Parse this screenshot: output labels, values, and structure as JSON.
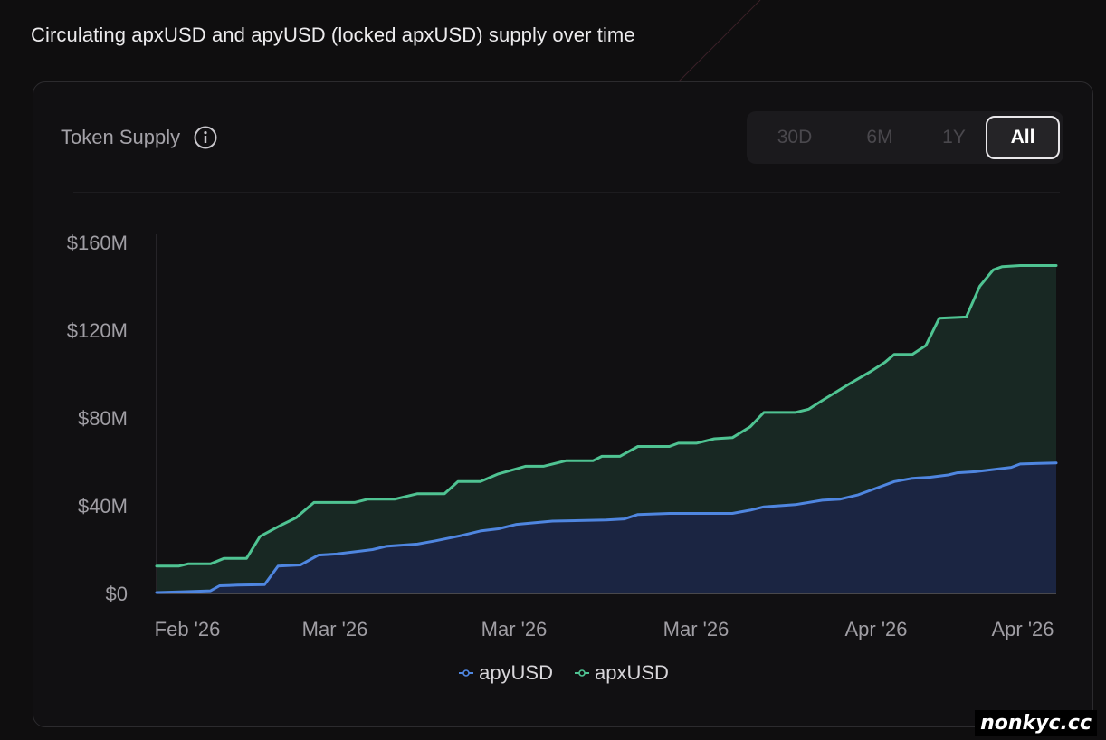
{
  "subtitle": "Circulating apxUSD and apyUSD (locked apxUSD) supply over time",
  "card": {
    "title": "Token Supply",
    "info_icon": "info-icon"
  },
  "range_selector": {
    "options": [
      "30D",
      "6M",
      "1Y",
      "All"
    ],
    "selected": "All"
  },
  "watermark": "nonkyc.cc",
  "chart_data": {
    "type": "area",
    "stacked": false,
    "title": "Token Supply",
    "x_tick_labels": [
      "Feb '26",
      "Mar '26",
      "Mar '26",
      "Mar '26",
      "Apr '26",
      "Apr '26"
    ],
    "x_range": [
      0,
      100
    ],
    "ylim": [
      0,
      160
    ],
    "y_unit": "$M",
    "y_tick_labels": [
      "$0",
      "$40M",
      "$80M",
      "$120M",
      "$160M"
    ],
    "y_ticks": [
      0,
      40,
      80,
      120,
      160
    ],
    "grid": false,
    "legend_position": "bottom-center",
    "series": [
      {
        "name": "apyUSD",
        "color": "#4f86e0",
        "fill": "#1b2544",
        "points": [
          [
            0,
            0.4
          ],
          [
            3,
            0.8
          ],
          [
            6,
            1.2
          ],
          [
            7,
            3.5
          ],
          [
            9,
            3.8
          ],
          [
            12,
            4.0
          ],
          [
            13.5,
            12.5
          ],
          [
            16,
            13.0
          ],
          [
            18,
            17.5
          ],
          [
            20,
            18.0
          ],
          [
            23,
            19.5
          ],
          [
            24,
            20.0
          ],
          [
            25.5,
            21.5
          ],
          [
            29,
            22.5
          ],
          [
            31,
            24.0
          ],
          [
            34,
            26.5
          ],
          [
            36,
            28.5
          ],
          [
            38,
            29.5
          ],
          [
            40,
            31.5
          ],
          [
            44,
            33.0
          ],
          [
            50,
            33.5
          ],
          [
            52,
            34.0
          ],
          [
            53.5,
            36.0
          ],
          [
            57,
            36.5
          ],
          [
            60,
            36.5
          ],
          [
            64,
            36.5
          ],
          [
            66,
            38.0
          ],
          [
            67.5,
            39.5
          ],
          [
            71,
            40.5
          ],
          [
            74,
            42.5
          ],
          [
            76,
            43.0
          ],
          [
            78,
            45.0
          ],
          [
            80,
            48.0
          ],
          [
            82,
            51.0
          ],
          [
            84,
            52.5
          ],
          [
            86,
            53.0
          ],
          [
            88,
            54.0
          ],
          [
            89,
            55.0
          ],
          [
            91,
            55.5
          ],
          [
            93,
            56.5
          ],
          [
            95,
            57.5
          ],
          [
            96,
            59.0
          ],
          [
            100,
            59.5
          ]
        ]
      },
      {
        "name": "apxUSD",
        "color": "#4fc392",
        "fill": "#192a25",
        "points": [
          [
            0,
            12.5
          ],
          [
            2.5,
            12.5
          ],
          [
            3.5,
            13.5
          ],
          [
            6,
            13.5
          ],
          [
            7.5,
            16.0
          ],
          [
            10,
            16.0
          ],
          [
            11.5,
            26.0
          ],
          [
            14,
            31.5
          ],
          [
            15.5,
            34.5
          ],
          [
            17.5,
            41.5
          ],
          [
            22,
            41.5
          ],
          [
            23.5,
            43.0
          ],
          [
            26.5,
            43.0
          ],
          [
            29,
            45.5
          ],
          [
            32,
            45.5
          ],
          [
            33.5,
            51.0
          ],
          [
            36,
            51.0
          ],
          [
            38,
            54.5
          ],
          [
            41,
            58.0
          ],
          [
            43,
            58.0
          ],
          [
            45.5,
            60.5
          ],
          [
            48.5,
            60.5
          ],
          [
            49.5,
            62.5
          ],
          [
            51.5,
            62.5
          ],
          [
            53.5,
            67.0
          ],
          [
            57,
            67.0
          ],
          [
            58,
            68.5
          ],
          [
            60,
            68.5
          ],
          [
            62,
            70.5
          ],
          [
            64,
            71.0
          ],
          [
            66,
            76.0
          ],
          [
            67.5,
            82.5
          ],
          [
            71,
            82.5
          ],
          [
            72.5,
            84.0
          ],
          [
            74,
            88.0
          ],
          [
            77,
            95.5
          ],
          [
            79.5,
            101.5
          ],
          [
            81,
            105.5
          ],
          [
            82,
            109.0
          ],
          [
            84,
            109.0
          ],
          [
            85.5,
            113.0
          ],
          [
            87,
            125.5
          ],
          [
            90,
            126.0
          ],
          [
            91.5,
            140.0
          ],
          [
            93,
            147.5
          ],
          [
            94,
            149.0
          ],
          [
            96,
            149.5
          ],
          [
            100,
            149.5
          ]
        ]
      }
    ]
  }
}
